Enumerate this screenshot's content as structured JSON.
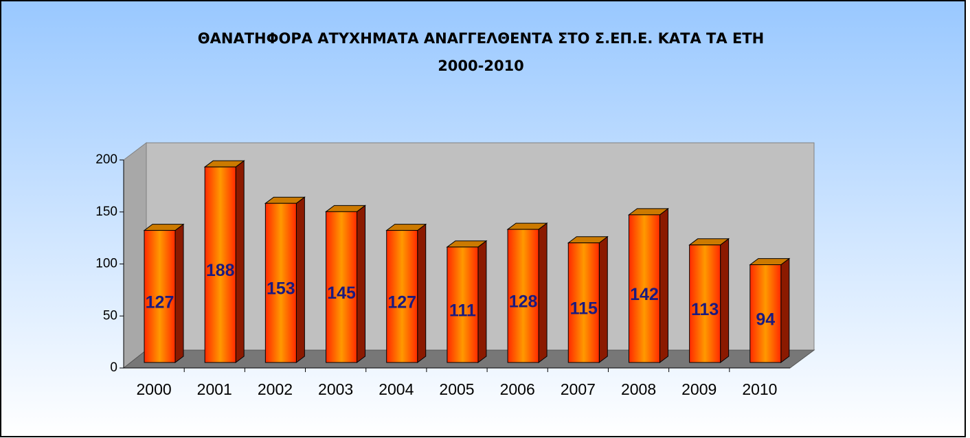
{
  "chart_data": {
    "type": "bar3d",
    "title": [
      "ΘΑΝΑΤΗΦΟΡΑ ΑΤΥΧΗΜΑΤΑ ΑΝΑΓΓΕΛΘΕΝΤΑ ΣΤΟ Σ.ΕΠ.Ε. ΚΑΤΑ ΤΑ ΕΤΗ",
      "2000-2010"
    ],
    "categories": [
      "2000",
      "2001",
      "2002",
      "2003",
      "2004",
      "2005",
      "2006",
      "2007",
      "2008",
      "2009",
      "2010"
    ],
    "values": [
      127,
      188,
      153,
      145,
      127,
      111,
      128,
      115,
      142,
      113,
      94
    ],
    "color": "#ff3300",
    "ylim": [
      0,
      200
    ],
    "yticks": [
      0,
      50,
      100,
      150,
      200
    ]
  }
}
